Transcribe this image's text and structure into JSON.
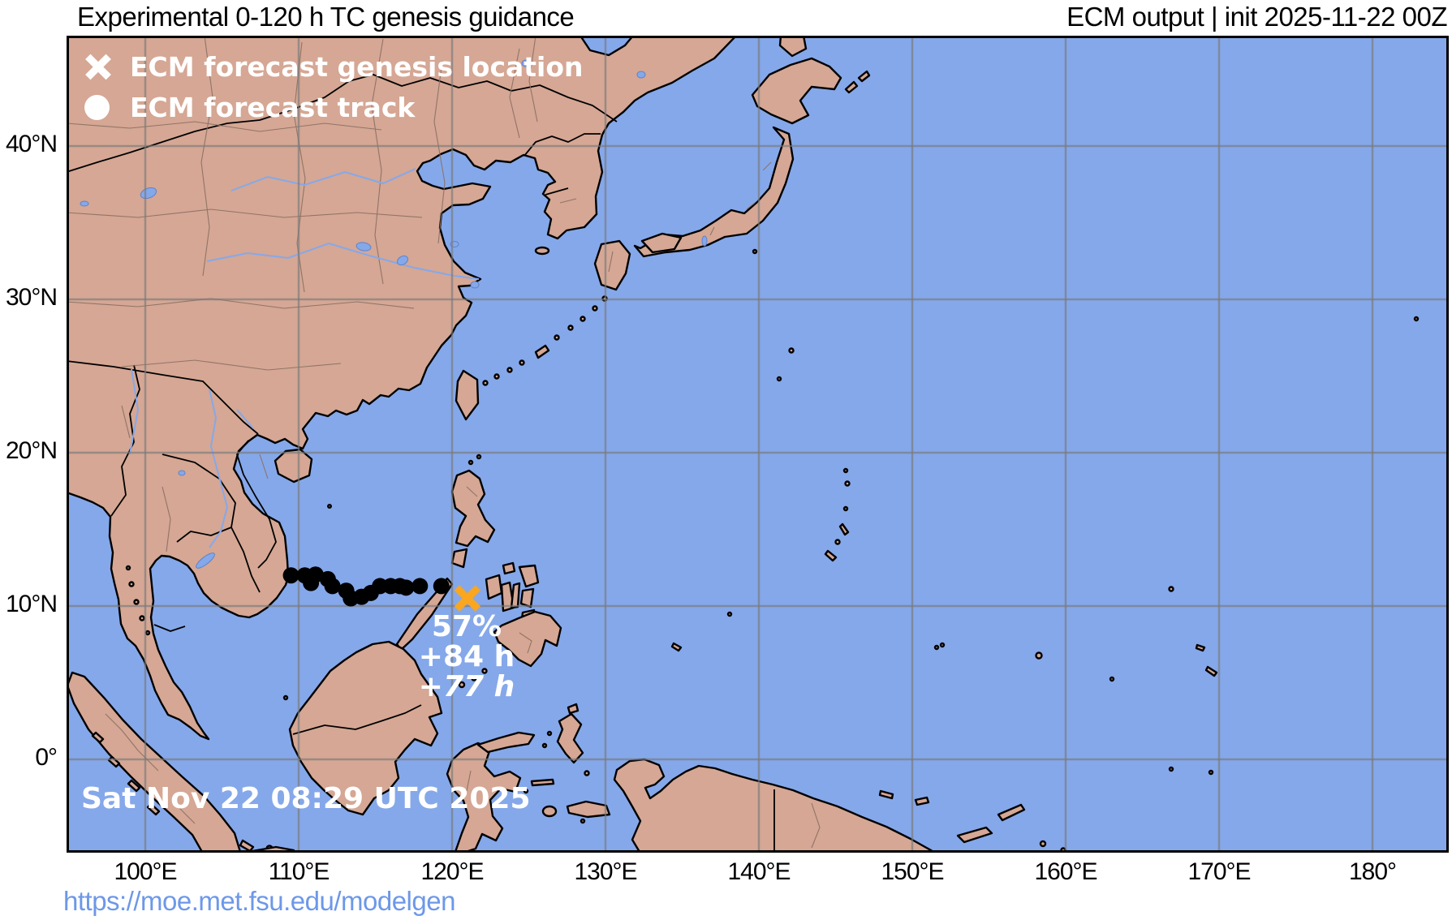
{
  "header": {
    "title_left": "Experimental 0-120 h TC genesis guidance",
    "title_right": "ECM output | init 2025-11-22 00Z"
  },
  "legend": {
    "items": [
      {
        "icon": "x-marker-icon",
        "label": "ECM forecast genesis location"
      },
      {
        "icon": "track-dot-icon",
        "label": "ECM forecast track"
      }
    ]
  },
  "annotations": {
    "probability": "57%",
    "hour_mean": "+84 h",
    "hour_first": "+77 h",
    "timestamp": "Sat Nov 22 08:29 UTC 2025"
  },
  "footer": {
    "url_label": "https://moe.met.fsu.edu/modelgen"
  },
  "axes": {
    "lat_ticks": [
      {
        "label": "40°N",
        "value": 40
      },
      {
        "label": "30°N",
        "value": 30
      },
      {
        "label": "20°N",
        "value": 20
      },
      {
        "label": "10°N",
        "value": 10
      },
      {
        "label": "0°",
        "value": 0
      }
    ],
    "lon_ticks": [
      {
        "label": "100°E",
        "value": 100
      },
      {
        "label": "110°E",
        "value": 110
      },
      {
        "label": "120°E",
        "value": 120
      },
      {
        "label": "130°E",
        "value": 130
      },
      {
        "label": "140°E",
        "value": 140
      },
      {
        "label": "150°E",
        "value": 150
      },
      {
        "label": "160°E",
        "value": 160
      },
      {
        "label": "170°E",
        "value": 170
      },
      {
        "label": "180°",
        "value": 180
      }
    ]
  },
  "chart_data": {
    "type": "scatter",
    "title": "Experimental 0-120 h TC genesis guidance",
    "subtitle": "ECM output | init 2025-11-22 00Z",
    "extent": {
      "lon_min": 94.9,
      "lon_max": 184.8,
      "lat_min": -6.1,
      "lat_max": 47.2
    },
    "grid": true,
    "legend_position": "top-left",
    "series": [
      {
        "name": "ECM forecast track",
        "marker": "filled-circle",
        "color": "#000000",
        "points": [
          [
            109.5,
            12.0
          ],
          [
            110.4,
            12.0
          ],
          [
            111.1,
            12.05
          ],
          [
            110.8,
            11.5
          ],
          [
            111.9,
            11.75
          ],
          [
            112.2,
            11.3
          ],
          [
            113.1,
            11.0
          ],
          [
            113.4,
            10.5
          ],
          [
            114.1,
            10.6
          ],
          [
            114.7,
            10.85
          ],
          [
            115.3,
            11.3
          ],
          [
            116.0,
            11.3
          ],
          [
            116.6,
            11.3
          ],
          [
            117.0,
            11.2
          ],
          [
            117.9,
            11.3
          ],
          [
            119.3,
            11.3
          ]
        ]
      },
      {
        "name": "ECM forecast genesis location",
        "marker": "x",
        "color": "#faa61e",
        "points": [
          [
            121.0,
            10.5
          ]
        ]
      }
    ],
    "colors": {
      "ocean": "#85a8ea",
      "land": "#d5a794",
      "grid": "#7a7a7a",
      "frame": "#000000",
      "annotation_text": "#ffffff",
      "url": "#6d98e8"
    }
  }
}
